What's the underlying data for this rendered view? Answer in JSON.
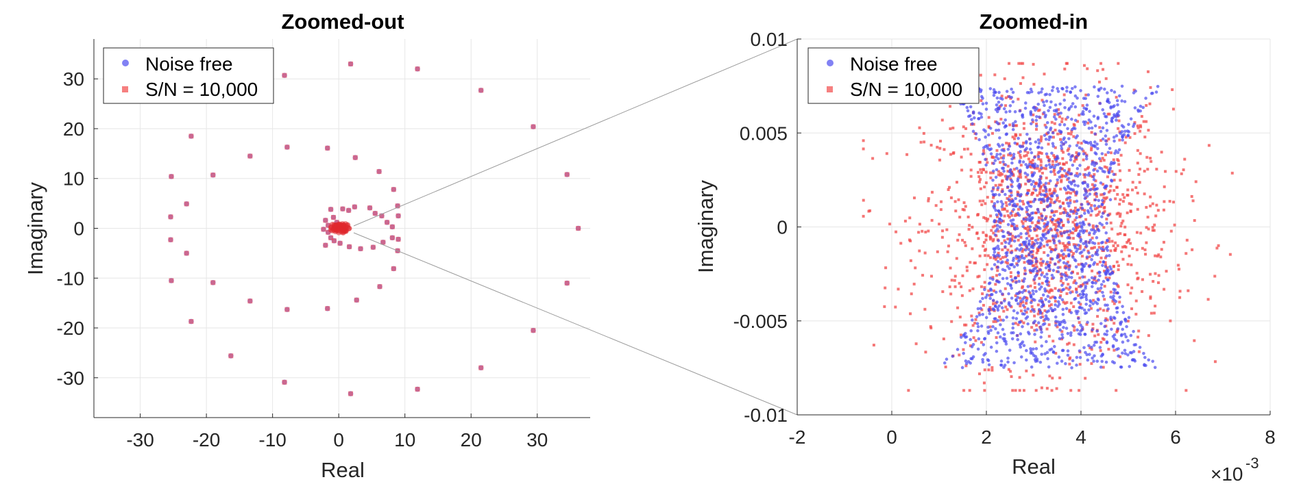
{
  "chart_data": [
    {
      "type": "scatter",
      "title": "Zoomed-out",
      "xlabel": "Real",
      "ylabel": "Imaginary",
      "xlim": [
        -37,
        38
      ],
      "ylim": [
        -38,
        38
      ],
      "xticks": [
        -30,
        -20,
        -10,
        0,
        10,
        20,
        30
      ],
      "yticks": [
        -30,
        -20,
        -10,
        0,
        10,
        20,
        30
      ],
      "xtick_labels": [
        "-30",
        "-20",
        "-10",
        "0",
        "10",
        "20",
        "30"
      ],
      "ytick_labels": [
        "-30",
        "-20",
        "-10",
        "0",
        "10",
        "20",
        "30"
      ],
      "grid": true,
      "legend": {
        "placement": "top-left",
        "entries": [
          "Noise free",
          "S/N = 10,000"
        ]
      },
      "series": [
        {
          "name": "Noise free",
          "color": "#4b4bf0",
          "marker": "circle",
          "points": [
            [
              -1.2,
              3.8
            ],
            [
              -0.8,
              2.2
            ],
            [
              -0.3,
              1.2
            ],
            [
              0.6,
              3.9
            ],
            [
              1.5,
              3.6
            ],
            [
              2.4,
              4.3
            ],
            [
              4.7,
              4.1
            ],
            [
              5.5,
              3.0
            ],
            [
              6.5,
              2.5
            ],
            [
              7.3,
              1.2
            ],
            [
              8.1,
              0.3
            ],
            [
              8.1,
              -1.9
            ],
            [
              6.7,
              -2.8
            ],
            [
              5.2,
              -3.8
            ],
            [
              3.3,
              -4.1
            ],
            [
              1.6,
              -3.7
            ],
            [
              0.2,
              -3.0
            ],
            [
              -0.7,
              -2.5
            ],
            [
              -1.2,
              -1.9
            ],
            [
              -1.6,
              -0.8
            ],
            [
              -1.6,
              0.6
            ],
            [
              -2.0,
              1.6
            ],
            [
              -2.0,
              -3.4
            ],
            [
              9.0,
              2.5
            ],
            [
              9.0,
              -2.2
            ],
            [
              0.3,
              -0.1
            ],
            [
              -0.1,
              0.1
            ],
            [
              -2.3,
              -0.2
            ],
            [
              -0.3,
              -0.4
            ],
            [
              -1.7,
              16.1
            ],
            [
              2.5,
              14.2
            ],
            [
              6.1,
              11.4
            ],
            [
              8.3,
              7.8
            ],
            [
              8.9,
              4.5
            ],
            [
              8.9,
              -4.5
            ],
            [
              8.3,
              -8.1
            ],
            [
              6.2,
              -11.7
            ],
            [
              2.7,
              -14.4
            ],
            [
              -1.7,
              -16.1
            ],
            [
              -7.8,
              16.3
            ],
            [
              -13.4,
              14.5
            ],
            [
              -19.0,
              10.7
            ],
            [
              -23.0,
              4.9
            ],
            [
              -25.4,
              2.3
            ],
            [
              -25.4,
              -2.3
            ],
            [
              -23.0,
              -5.0
            ],
            [
              -19.0,
              -10.9
            ],
            [
              -13.4,
              -14.6
            ],
            [
              -7.8,
              -16.3
            ],
            [
              -25.3,
              10.4
            ],
            [
              -22.3,
              18.5
            ],
            [
              -8.2,
              30.7
            ],
            [
              1.8,
              33.0
            ],
            [
              11.9,
              32.0
            ],
            [
              21.5,
              27.7
            ],
            [
              29.4,
              20.4
            ],
            [
              34.5,
              10.8
            ],
            [
              36.2,
              0.0
            ],
            [
              34.5,
              -11.0
            ],
            [
              29.4,
              -20.5
            ],
            [
              21.5,
              -28.0
            ],
            [
              11.9,
              -32.3
            ],
            [
              1.8,
              -33.2
            ],
            [
              -8.2,
              -30.9
            ],
            [
              -16.3,
              -25.6
            ],
            [
              -22.3,
              -18.7
            ],
            [
              -25.3,
              -10.5
            ]
          ]
        },
        {
          "name": "S/N = 10,000",
          "color": "#f24a4a",
          "marker": "square",
          "points": [
            [
              -1.2,
              3.8
            ],
            [
              -0.8,
              2.2
            ],
            [
              -0.3,
              1.2
            ],
            [
              0.6,
              3.9
            ],
            [
              1.5,
              3.6
            ],
            [
              2.4,
              4.3
            ],
            [
              4.7,
              4.1
            ],
            [
              5.5,
              3.0
            ],
            [
              6.5,
              2.5
            ],
            [
              7.3,
              1.2
            ],
            [
              8.1,
              0.3
            ],
            [
              8.1,
              -1.9
            ],
            [
              6.7,
              -2.8
            ],
            [
              5.2,
              -3.8
            ],
            [
              3.3,
              -4.1
            ],
            [
              1.6,
              -3.7
            ],
            [
              0.2,
              -3.0
            ],
            [
              -0.7,
              -2.5
            ],
            [
              -1.2,
              -1.9
            ],
            [
              -1.6,
              -0.8
            ],
            [
              -1.6,
              0.6
            ],
            [
              -2.0,
              1.6
            ],
            [
              -2.0,
              -3.4
            ],
            [
              9.0,
              2.5
            ],
            [
              9.0,
              -2.2
            ],
            [
              0.3,
              -0.1
            ],
            [
              -0.1,
              0.1
            ],
            [
              -2.3,
              -0.2
            ],
            [
              -0.3,
              -0.4
            ],
            [
              -1.7,
              16.1
            ],
            [
              2.5,
              14.2
            ],
            [
              6.1,
              11.4
            ],
            [
              8.3,
              7.8
            ],
            [
              8.9,
              4.5
            ],
            [
              8.9,
              -4.5
            ],
            [
              8.3,
              -8.1
            ],
            [
              6.2,
              -11.7
            ],
            [
              2.7,
              -14.4
            ],
            [
              -1.7,
              -16.1
            ],
            [
              -7.8,
              16.3
            ],
            [
              -13.4,
              14.5
            ],
            [
              -19.0,
              10.7
            ],
            [
              -23.0,
              4.9
            ],
            [
              -25.4,
              2.3
            ],
            [
              -25.4,
              -2.3
            ],
            [
              -23.0,
              -5.0
            ],
            [
              -19.0,
              -10.9
            ],
            [
              -13.4,
              -14.6
            ],
            [
              -7.8,
              -16.3
            ],
            [
              -25.3,
              10.4
            ],
            [
              -22.3,
              18.5
            ],
            [
              -8.2,
              30.7
            ],
            [
              1.8,
              33.0
            ],
            [
              11.9,
              32.0
            ],
            [
              21.5,
              27.7
            ],
            [
              29.4,
              20.4
            ],
            [
              34.5,
              10.8
            ],
            [
              36.2,
              0.0
            ],
            [
              34.5,
              -11.0
            ],
            [
              29.4,
              -20.5
            ],
            [
              21.5,
              -28.0
            ],
            [
              11.9,
              -32.3
            ],
            [
              1.8,
              -33.2
            ],
            [
              -8.2,
              -30.9
            ],
            [
              -16.3,
              -25.6
            ],
            [
              -22.3,
              -18.7
            ],
            [
              -25.3,
              -10.5
            ]
          ]
        }
      ],
      "cluster_near_origin": {
        "center": [
          0,
          0
        ],
        "count": 3000,
        "x_range": [
          0.0003,
          0.007
        ],
        "y_range": [
          -0.009,
          0.009
        ]
      }
    },
    {
      "type": "scatter",
      "title": "Zoomed-in",
      "xlabel": "Real",
      "ylabel": "Imaginary",
      "xlim": [
        -0.002,
        0.008
      ],
      "ylim": [
        -0.01,
        0.01
      ],
      "xticks": [
        -0.002,
        0,
        0.002,
        0.004,
        0.006,
        0.008
      ],
      "yticks": [
        -0.01,
        -0.005,
        0,
        0.005,
        0.01
      ],
      "xtick_labels": [
        "-2",
        "0",
        "2",
        "4",
        "6",
        "8"
      ],
      "ytick_labels": [
        "-0.01",
        "-0.005",
        "0",
        "0.005",
        "0.01"
      ],
      "x_exponent_label": "×10",
      "x_exponent_power": "-3",
      "grid": true,
      "legend": {
        "placement": "top-left",
        "entries": [
          "Noise free",
          "S/N = 10,000"
        ]
      },
      "series": [
        {
          "name": "Noise free",
          "color": "#4b4bf0",
          "marker": "circle",
          "count": 1500,
          "x_range": [
            0.0007,
            0.0058
          ],
          "y_range": [
            -0.0081,
            0.0077
          ],
          "waist_x_range": [
            0.0021,
            0.0046
          ],
          "shape": "hourglass, flaring toward top-left and bottom-left"
        },
        {
          "name": "S/N = 10,000",
          "color": "#f24a4a",
          "marker": "square",
          "count": 1400,
          "x_range": [
            -0.0006,
            0.0072
          ],
          "y_range": [
            -0.0087,
            0.0087
          ],
          "center": [
            0.0033,
            0.0
          ]
        }
      ]
    }
  ],
  "zoom_connector": {
    "color": "#9a9a9a",
    "from_region": "origin cluster",
    "to_panel": "Zoomed-in"
  }
}
